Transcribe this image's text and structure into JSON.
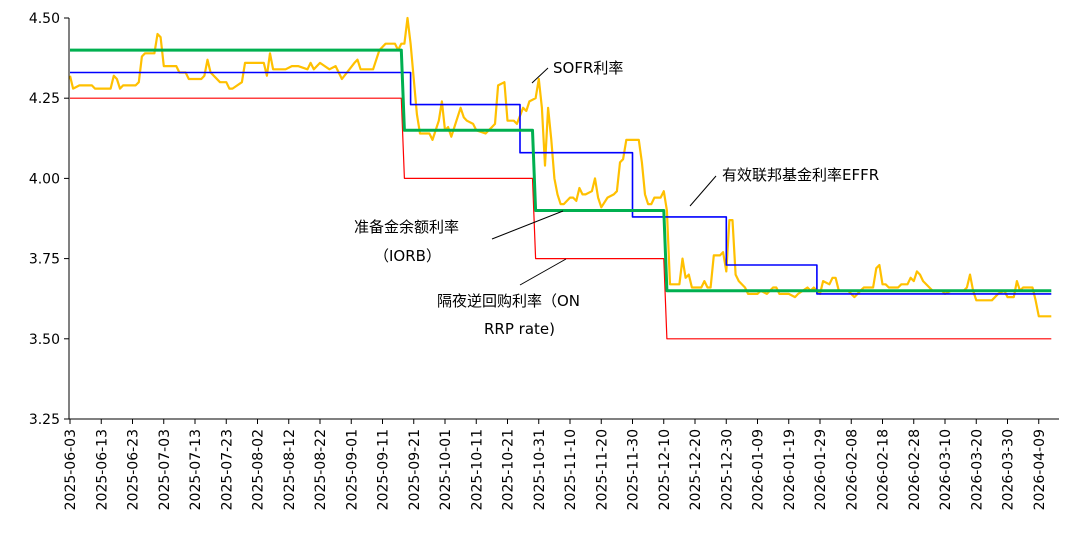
{
  "chart_data": {
    "type": "line",
    "title": "",
    "xlabel": "",
    "ylabel": "",
    "ylim": [
      3.25,
      4.5
    ],
    "yticks": [
      "3.25",
      "3.50",
      "3.75",
      "4.00",
      "4.25",
      "4.50"
    ],
    "x_range": [
      "2025-06-03",
      "2026-04-13"
    ],
    "xticks": [
      "2025-06-03",
      "2025-06-13",
      "2025-06-23",
      "2025-07-03",
      "2025-07-13",
      "2025-07-23",
      "2025-08-02",
      "2025-08-12",
      "2025-08-22",
      "2025-09-01",
      "2025-09-11",
      "2025-09-21",
      "2025-10-01",
      "2025-10-11",
      "2025-10-21",
      "2025-10-31",
      "2025-11-10",
      "2025-11-20",
      "2025-11-30",
      "2025-12-10",
      "2025-12-20",
      "2025-12-30",
      "2026-01-09",
      "2026-01-19",
      "2026-01-29",
      "2026-02-08",
      "2026-02-18",
      "2026-02-28",
      "2026-03-10",
      "2026-03-20",
      "2026-03-30",
      "2026-04-09"
    ],
    "series": [
      {
        "name": "SOFR利率",
        "color": "#FFC000",
        "points": [
          [
            "2025-06-03",
            4.32
          ],
          [
            "2025-06-04",
            4.28
          ],
          [
            "2025-06-06",
            4.29
          ],
          [
            "2025-06-10",
            4.29
          ],
          [
            "2025-06-11",
            4.28
          ],
          [
            "2025-06-16",
            4.28
          ],
          [
            "2025-06-17",
            4.32
          ],
          [
            "2025-06-18",
            4.31
          ],
          [
            "2025-06-19",
            4.28
          ],
          [
            "2025-06-20",
            4.29
          ],
          [
            "2025-06-24",
            4.29
          ],
          [
            "2025-06-25",
            4.3
          ],
          [
            "2025-06-26",
            4.38
          ],
          [
            "2025-06-27",
            4.39
          ],
          [
            "2025-06-30",
            4.39
          ],
          [
            "2025-07-01",
            4.45
          ],
          [
            "2025-07-02",
            4.44
          ],
          [
            "2025-07-03",
            4.35
          ],
          [
            "2025-07-07",
            4.35
          ],
          [
            "2025-07-08",
            4.33
          ],
          [
            "2025-07-10",
            4.33
          ],
          [
            "2025-07-11",
            4.31
          ],
          [
            "2025-07-15",
            4.31
          ],
          [
            "2025-07-16",
            4.32
          ],
          [
            "2025-07-17",
            4.37
          ],
          [
            "2025-07-18",
            4.33
          ],
          [
            "2025-07-21",
            4.3
          ],
          [
            "2025-07-23",
            4.3
          ],
          [
            "2025-07-24",
            4.28
          ],
          [
            "2025-07-25",
            4.28
          ],
          [
            "2025-07-28",
            4.3
          ],
          [
            "2025-07-29",
            4.36
          ],
          [
            "2025-08-01",
            4.36
          ],
          [
            "2025-08-04",
            4.36
          ],
          [
            "2025-08-05",
            4.32
          ],
          [
            "2025-08-06",
            4.39
          ],
          [
            "2025-08-07",
            4.34
          ],
          [
            "2025-08-11",
            4.34
          ],
          [
            "2025-08-13",
            4.35
          ],
          [
            "2025-08-15",
            4.35
          ],
          [
            "2025-08-18",
            4.34
          ],
          [
            "2025-08-19",
            4.36
          ],
          [
            "2025-08-20",
            4.34
          ],
          [
            "2025-08-22",
            4.36
          ],
          [
            "2025-08-25",
            4.34
          ],
          [
            "2025-08-27",
            4.35
          ],
          [
            "2025-08-29",
            4.31
          ],
          [
            "2025-09-02",
            4.36
          ],
          [
            "2025-09-03",
            4.37
          ],
          [
            "2025-09-04",
            4.34
          ],
          [
            "2025-09-08",
            4.34
          ],
          [
            "2025-09-10",
            4.4
          ],
          [
            "2025-09-12",
            4.42
          ],
          [
            "2025-09-15",
            4.42
          ],
          [
            "2025-09-16",
            4.4
          ],
          [
            "2025-09-17",
            4.42
          ],
          [
            "2025-09-18",
            4.42
          ],
          [
            "2025-09-19",
            4.5
          ],
          [
            "2025-09-20",
            4.42
          ],
          [
            "2025-09-22",
            4.2
          ],
          [
            "2025-09-23",
            4.14
          ],
          [
            "2025-09-24",
            4.14
          ],
          [
            "2025-09-26",
            4.14
          ],
          [
            "2025-09-27",
            4.12
          ],
          [
            "2025-09-29",
            4.18
          ],
          [
            "2025-09-30",
            4.24
          ],
          [
            "2025-10-01",
            4.15
          ],
          [
            "2025-10-02",
            4.16
          ],
          [
            "2025-10-03",
            4.13
          ],
          [
            "2025-10-06",
            4.22
          ],
          [
            "2025-10-07",
            4.19
          ],
          [
            "2025-10-08",
            4.18
          ],
          [
            "2025-10-10",
            4.17
          ],
          [
            "2025-10-11",
            4.15
          ],
          [
            "2025-10-14",
            4.14
          ],
          [
            "2025-10-16",
            4.16
          ],
          [
            "2025-10-17",
            4.17
          ],
          [
            "2025-10-18",
            4.29
          ],
          [
            "2025-10-20",
            4.3
          ],
          [
            "2025-10-21",
            4.18
          ],
          [
            "2025-10-23",
            4.18
          ],
          [
            "2025-10-24",
            4.17
          ],
          [
            "2025-10-26",
            4.22
          ],
          [
            "2025-10-27",
            4.21
          ],
          [
            "2025-10-28",
            4.24
          ],
          [
            "2025-10-30",
            4.25
          ],
          [
            "2025-10-31",
            4.31
          ],
          [
            "2025-11-01",
            4.22
          ],
          [
            "2025-11-02",
            4.04
          ],
          [
            "2025-11-03",
            4.22
          ],
          [
            "2025-11-04",
            4.12
          ],
          [
            "2025-11-05",
            4.0
          ],
          [
            "2025-11-06",
            3.95
          ],
          [
            "2025-11-07",
            3.92
          ],
          [
            "2025-11-08",
            3.92
          ],
          [
            "2025-11-10",
            3.94
          ],
          [
            "2025-11-11",
            3.94
          ],
          [
            "2025-11-12",
            3.93
          ],
          [
            "2025-11-13",
            3.97
          ],
          [
            "2025-11-14",
            3.95
          ],
          [
            "2025-11-15",
            3.95
          ],
          [
            "2025-11-17",
            3.96
          ],
          [
            "2025-11-18",
            4.0
          ],
          [
            "2025-11-19",
            3.94
          ],
          [
            "2025-11-20",
            3.91
          ],
          [
            "2025-11-22",
            3.94
          ],
          [
            "2025-11-24",
            3.95
          ],
          [
            "2025-11-25",
            3.96
          ],
          [
            "2025-11-26",
            4.05
          ],
          [
            "2025-11-27",
            4.06
          ],
          [
            "2025-11-28",
            4.12
          ],
          [
            "2025-11-29",
            4.12
          ],
          [
            "2025-12-01",
            4.12
          ],
          [
            "2025-12-02",
            4.12
          ],
          [
            "2025-12-03",
            4.05
          ],
          [
            "2025-12-04",
            3.95
          ],
          [
            "2025-12-05",
            3.92
          ],
          [
            "2025-12-06",
            3.92
          ],
          [
            "2025-12-07",
            3.94
          ],
          [
            "2025-12-09",
            3.94
          ],
          [
            "2025-12-10",
            3.96
          ],
          [
            "2025-12-11",
            3.9
          ],
          [
            "2025-12-12",
            3.67
          ],
          [
            "2025-12-13",
            3.67
          ],
          [
            "2025-12-15",
            3.67
          ],
          [
            "2025-12-16",
            3.75
          ],
          [
            "2025-12-17",
            3.69
          ],
          [
            "2025-12-18",
            3.7
          ],
          [
            "2025-12-19",
            3.66
          ],
          [
            "2025-12-20",
            3.66
          ],
          [
            "2025-12-22",
            3.66
          ],
          [
            "2025-12-23",
            3.68
          ],
          [
            "2025-12-24",
            3.66
          ],
          [
            "2025-12-25",
            3.66
          ],
          [
            "2025-12-26",
            3.76
          ],
          [
            "2025-12-27",
            3.76
          ],
          [
            "2025-12-28",
            3.76
          ],
          [
            "2025-12-29",
            3.77
          ],
          [
            "2025-12-30",
            3.71
          ],
          [
            "2025-12-31",
            3.87
          ],
          [
            "2026-01-01",
            3.87
          ],
          [
            "2026-01-02",
            3.7
          ],
          [
            "2026-01-03",
            3.68
          ],
          [
            "2026-01-05",
            3.66
          ],
          [
            "2026-01-06",
            3.64
          ],
          [
            "2026-01-08",
            3.64
          ],
          [
            "2026-01-09",
            3.64
          ],
          [
            "2026-01-10",
            3.65
          ],
          [
            "2026-01-12",
            3.64
          ],
          [
            "2026-01-14",
            3.66
          ],
          [
            "2026-01-15",
            3.66
          ],
          [
            "2026-01-16",
            3.64
          ],
          [
            "2026-01-19",
            3.64
          ],
          [
            "2026-01-21",
            3.63
          ],
          [
            "2026-01-22",
            3.64
          ],
          [
            "2026-01-25",
            3.66
          ],
          [
            "2026-01-26",
            3.65
          ],
          [
            "2026-01-27",
            3.66
          ],
          [
            "2026-01-29",
            3.64
          ],
          [
            "2026-01-30",
            3.68
          ],
          [
            "2026-02-01",
            3.67
          ],
          [
            "2026-02-02",
            3.69
          ],
          [
            "2026-02-03",
            3.69
          ],
          [
            "2026-02-04",
            3.65
          ],
          [
            "2026-02-07",
            3.65
          ],
          [
            "2026-02-09",
            3.63
          ],
          [
            "2026-02-11",
            3.65
          ],
          [
            "2026-02-12",
            3.66
          ],
          [
            "2026-02-15",
            3.66
          ],
          [
            "2026-02-16",
            3.72
          ],
          [
            "2026-02-17",
            3.73
          ],
          [
            "2026-02-18",
            3.67
          ],
          [
            "2026-02-19",
            3.67
          ],
          [
            "2026-02-20",
            3.66
          ],
          [
            "2026-02-23",
            3.66
          ],
          [
            "2026-02-24",
            3.67
          ],
          [
            "2026-02-26",
            3.67
          ],
          [
            "2026-02-27",
            3.69
          ],
          [
            "2026-02-28",
            3.68
          ],
          [
            "2026-03-01",
            3.71
          ],
          [
            "2026-03-02",
            3.7
          ],
          [
            "2026-03-03",
            3.68
          ],
          [
            "2026-03-05",
            3.66
          ],
          [
            "2026-03-06",
            3.65
          ],
          [
            "2026-03-09",
            3.65
          ],
          [
            "2026-03-10",
            3.64
          ],
          [
            "2026-03-12",
            3.65
          ],
          [
            "2026-03-16",
            3.65
          ],
          [
            "2026-03-17",
            3.66
          ],
          [
            "2026-03-18",
            3.7
          ],
          [
            "2026-03-19",
            3.65
          ],
          [
            "2026-03-20",
            3.62
          ],
          [
            "2026-03-23",
            3.62
          ],
          [
            "2026-03-25",
            3.62
          ],
          [
            "2026-03-27",
            3.64
          ],
          [
            "2026-03-29",
            3.65
          ],
          [
            "2026-03-30",
            3.63
          ],
          [
            "2026-04-01",
            3.63
          ],
          [
            "2026-04-02",
            3.68
          ],
          [
            "2026-04-03",
            3.65
          ],
          [
            "2026-04-04",
            3.66
          ],
          [
            "2026-04-05",
            3.66
          ],
          [
            "2026-04-07",
            3.66
          ],
          [
            "2026-04-08",
            3.62
          ],
          [
            "2026-04-09",
            3.57
          ],
          [
            "2026-04-13",
            3.57
          ]
        ]
      },
      {
        "name": "有效联邦基金利率EFFR",
        "color": "#0000FF",
        "points": [
          [
            "2025-06-03",
            4.33
          ],
          [
            "2025-09-20",
            4.33
          ],
          [
            "2025-09-20",
            4.23
          ],
          [
            "2025-10-25",
            4.23
          ],
          [
            "2025-10-25",
            4.08
          ],
          [
            "2025-11-30",
            4.08
          ],
          [
            "2025-11-30",
            3.88
          ],
          [
            "2025-12-30",
            3.88
          ],
          [
            "2025-12-30",
            3.73
          ],
          [
            "2026-01-28",
            3.73
          ],
          [
            "2026-01-28",
            3.64
          ],
          [
            "2026-04-13",
            3.64
          ]
        ]
      },
      {
        "name": "准备金余额利率（IORB）",
        "color": "#00B050",
        "points": [
          [
            "2025-06-03",
            4.4
          ],
          [
            "2025-09-17",
            4.4
          ],
          [
            "2025-09-18",
            4.15
          ],
          [
            "2025-10-29",
            4.15
          ],
          [
            "2025-10-30",
            3.9
          ],
          [
            "2025-12-10",
            3.9
          ],
          [
            "2025-12-11",
            3.65
          ],
          [
            "2026-04-13",
            3.65
          ]
        ]
      },
      {
        "name": "隔夜逆回购利率（ON RRP rate)",
        "color": "#FF0000",
        "points": [
          [
            "2025-06-03",
            4.25
          ],
          [
            "2025-09-17",
            4.25
          ],
          [
            "2025-09-18",
            4.0
          ],
          [
            "2025-10-29",
            4.0
          ],
          [
            "2025-10-30",
            3.75
          ],
          [
            "2025-12-10",
            3.75
          ],
          [
            "2025-12-11",
            3.5
          ],
          [
            "2026-04-13",
            3.5
          ]
        ]
      }
    ],
    "annotations": {
      "sofr": "SOFR利率",
      "effr": "有效联邦基金利率EFFR",
      "iorb_line1": "准备金余额利率",
      "iorb_line2": "（IORB）",
      "onrrp_line1": "隔夜逆回购利率（ON",
      "onrrp_line2": "RRP rate)"
    },
    "grid": false,
    "legend": "none"
  }
}
